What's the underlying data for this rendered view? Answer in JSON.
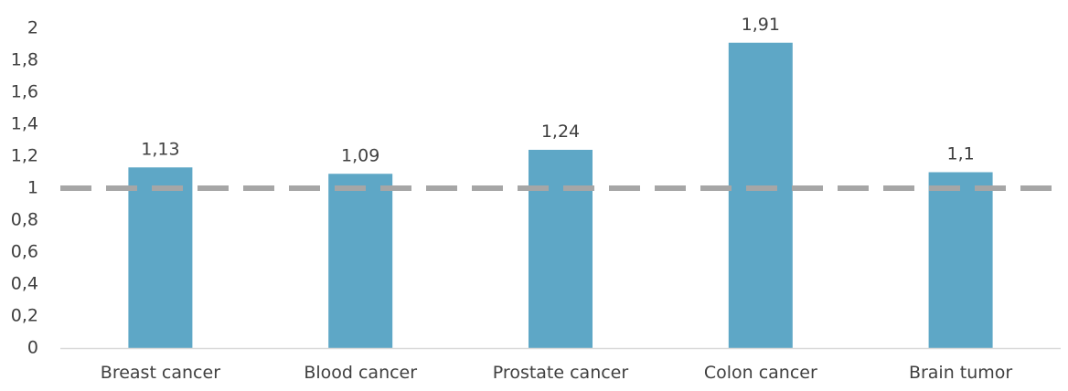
{
  "chart_data": {
    "type": "bar",
    "categories": [
      "Breast cancer",
      "Blood cancer",
      "Prostate cancer",
      "Colon cancer",
      "Brain tumor"
    ],
    "values": [
      1.13,
      1.09,
      1.24,
      1.91,
      1.1
    ],
    "data_labels": [
      "1,13",
      "1,09",
      "1,24",
      "1,91",
      "1,1"
    ],
    "ylim": [
      0,
      2
    ],
    "yticks": [
      0,
      0.2,
      0.4,
      0.6,
      0.8,
      1,
      1.2,
      1.4,
      1.6,
      1.8,
      2
    ],
    "ytick_labels": [
      "0",
      "0,2",
      "0,4",
      "0,6",
      "0,8",
      "1",
      "1,2",
      "1,4",
      "1,6",
      "1,8",
      "2"
    ],
    "reference_line": {
      "y": 1,
      "style": "dashed"
    },
    "grid": false,
    "legend": "none",
    "colors": {
      "bar": "#5ea7c6",
      "reference_line": "#a6a6a6",
      "axis": "#d9d9d9",
      "text": "#404040"
    }
  }
}
